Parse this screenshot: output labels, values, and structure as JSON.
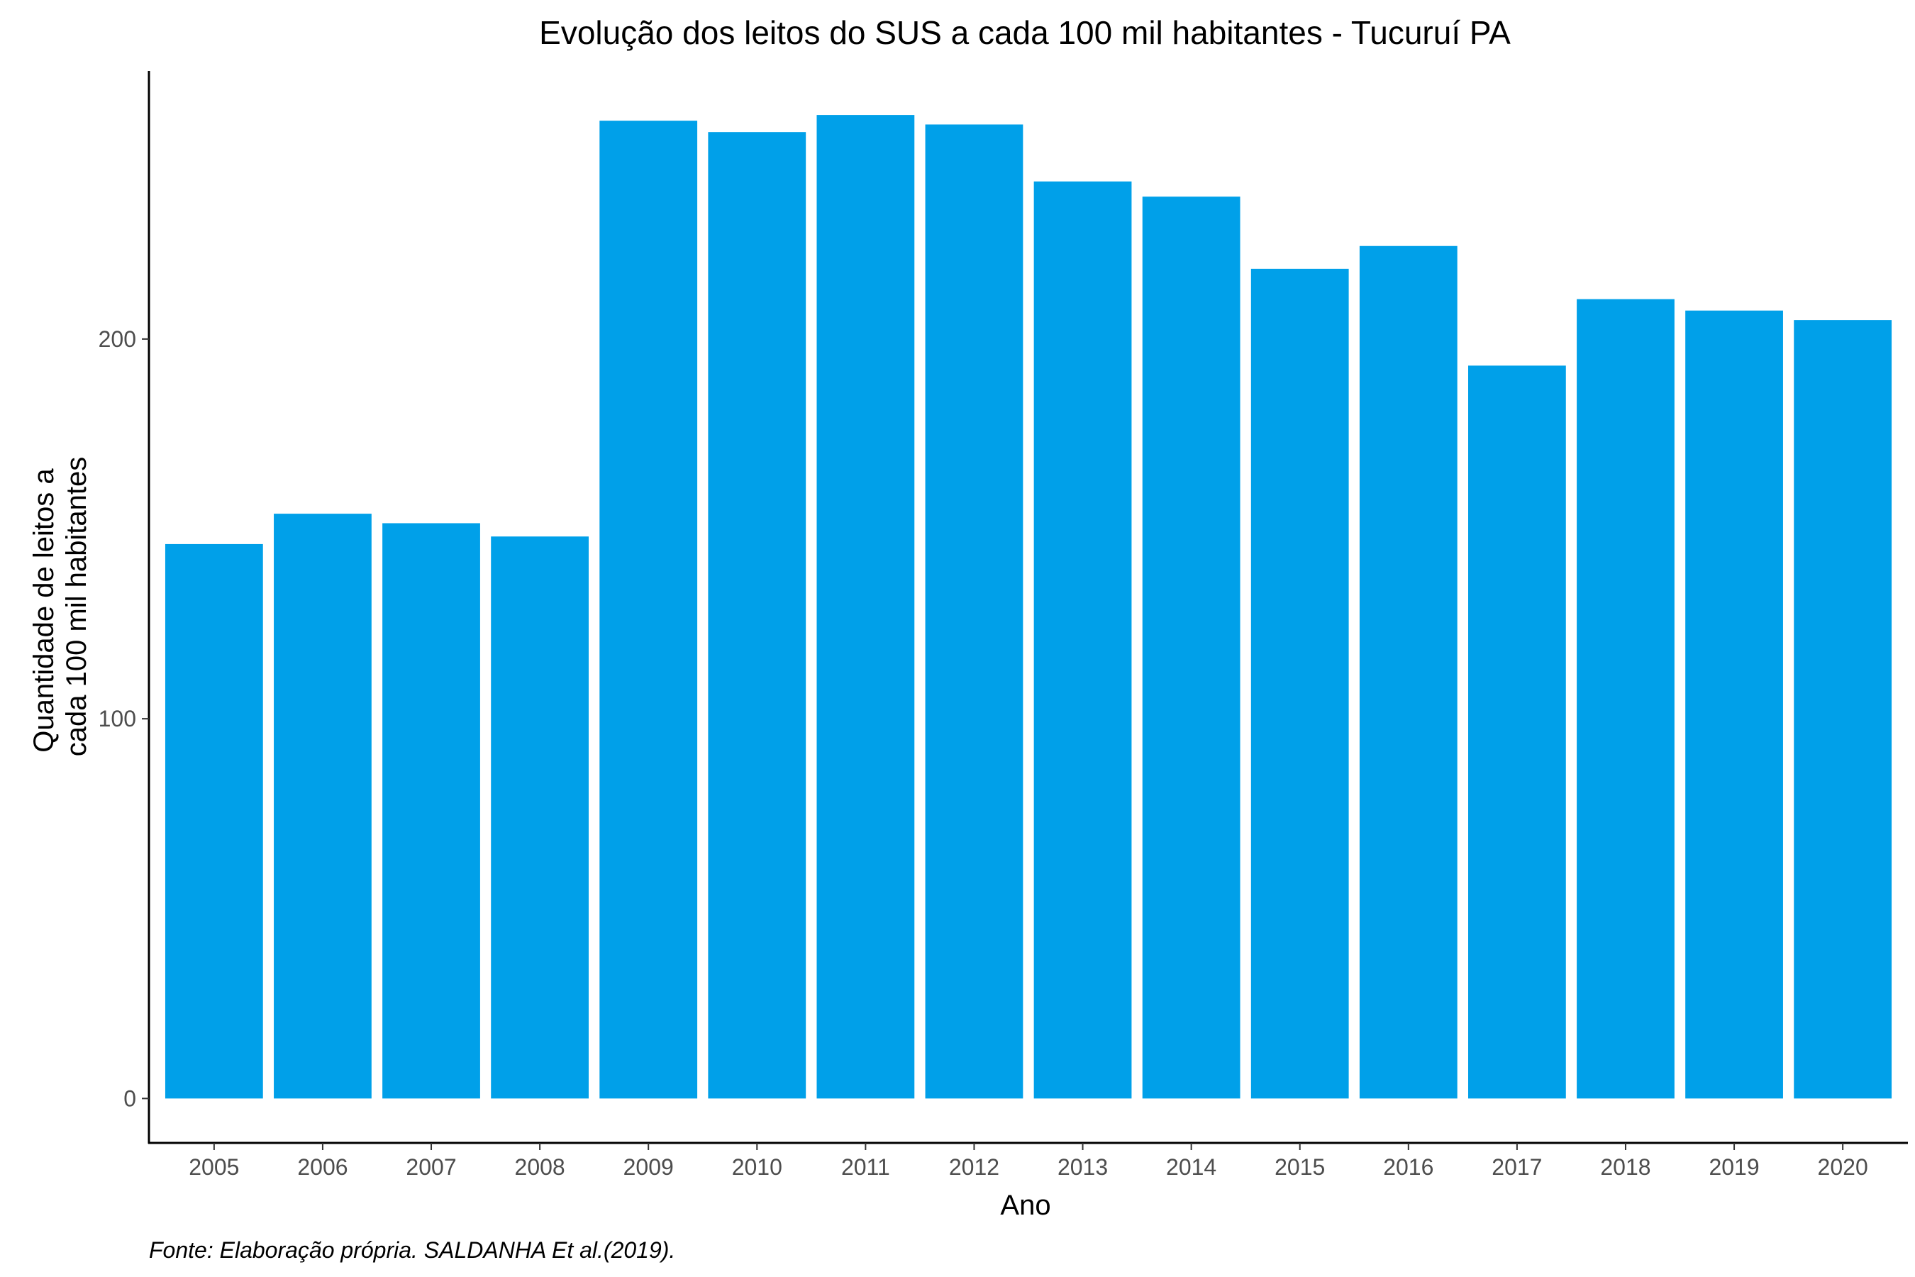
{
  "chart_data": {
    "type": "bar",
    "title": "Evolução dos leitos do SUS a cada 100 mil habitantes -  Tucuruí PA",
    "xlabel": "Ano",
    "ylabel_lines": [
      "Quantidade de leitos a",
      "cada 100 mil habitantes"
    ],
    "categories": [
      "2005",
      "2006",
      "2007",
      "2008",
      "2009",
      "2010",
      "2011",
      "2012",
      "2013",
      "2014",
      "2015",
      "2016",
      "2017",
      "2018",
      "2019",
      "2020"
    ],
    "values": [
      146,
      154,
      151.5,
      148,
      257.5,
      254.5,
      259,
      256.5,
      241.5,
      237.5,
      218.5,
      224.5,
      193,
      210.5,
      207.5,
      205
    ],
    "yticks": [
      0,
      100,
      200
    ],
    "ylim": [
      -11.7,
      270.6
    ],
    "bar_color": "#00A0E9",
    "grid": false,
    "legend": "none",
    "caption": "Fonte: Elaboração própria. SALDANHA Et al.(2019)."
  }
}
